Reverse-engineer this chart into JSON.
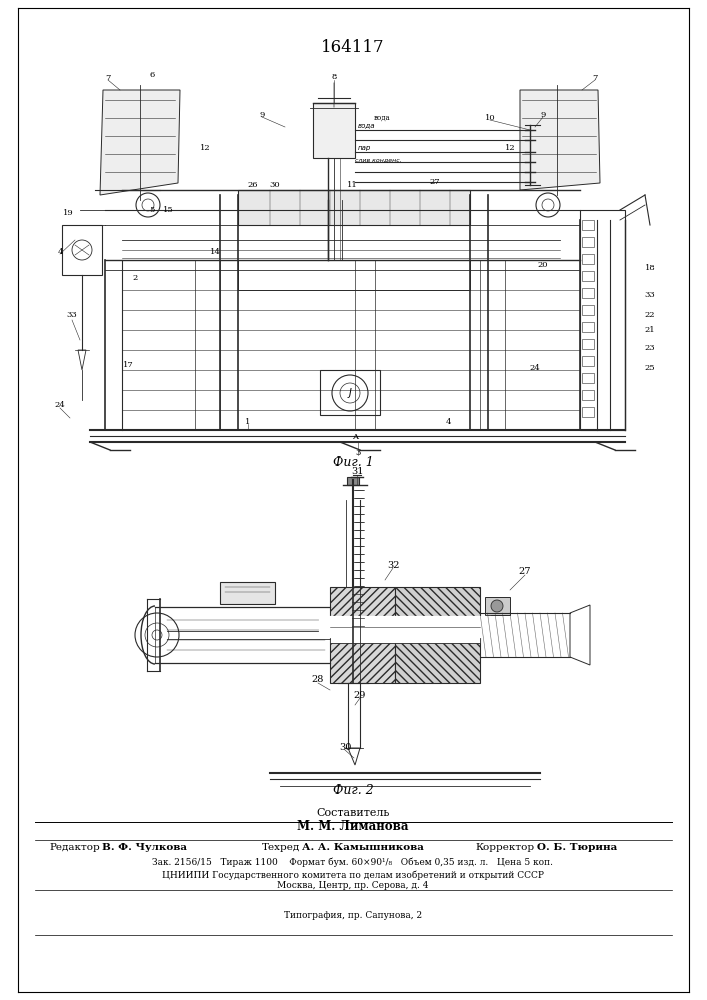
{
  "patent_number": "164117",
  "background_color": "#ffffff",
  "fig1_caption": "Фиг. 1",
  "fig2_caption": "Фиг. 2",
  "sestavitel_label": "Составитель",
  "sestavitel_name": "М. М. Лиманова",
  "redaktor_label": "Редактор",
  "redaktor_name": "В. Ф. Чулкова",
  "tehred_label": "Техред",
  "tehred_name": "А. А. Камышникова",
  "korrektor_label": "Корректор",
  "korrektor_name": "О. Б. Тюрина",
  "bottom_line1": "Зак. 2156/15   Тираж 1100    Формат бум. 60×90¹/₈   Объем 0,35 изд. л.   Цена 5 коп.",
  "bottom_line2": "ЦНИИПИ Государственного комитета по делам изобретений и открытий СССР",
  "bottom_line3": "Москва, Центр, пр. Серова, д. 4",
  "bottom_line4": "Типография, пр. Сапунова, 2",
  "border_color": "#000000",
  "text_color": "#000000",
  "line_color": "#2a2a2a",
  "hatch_color": "#444444"
}
